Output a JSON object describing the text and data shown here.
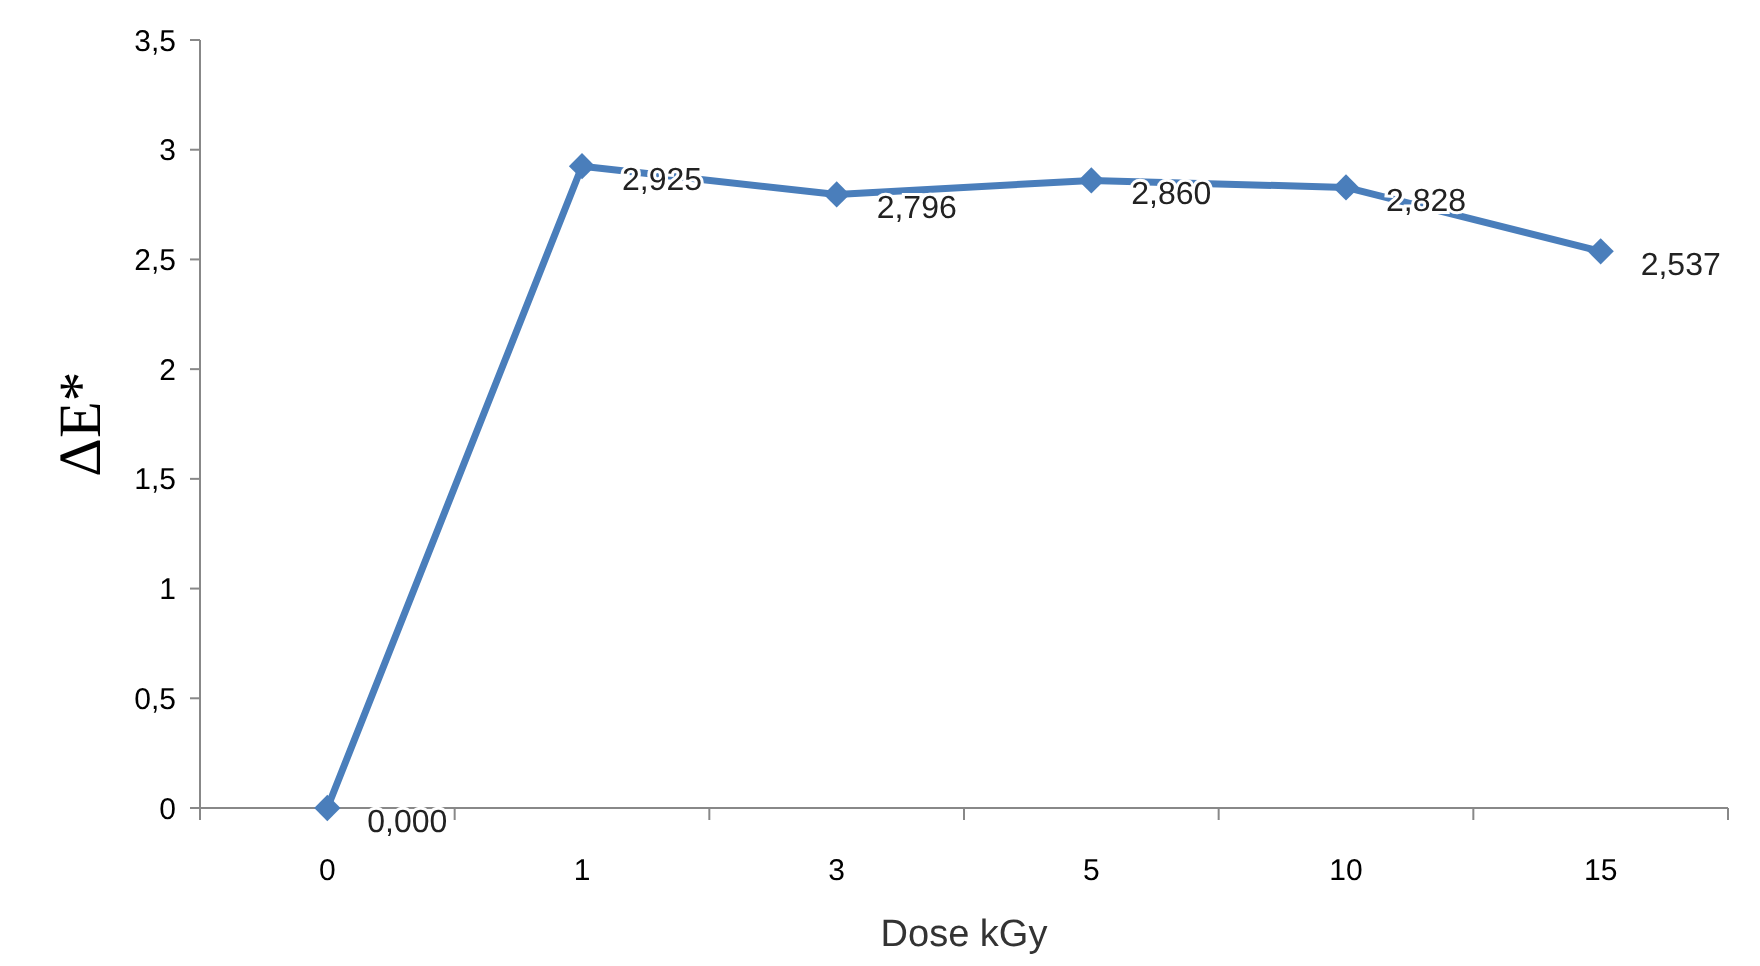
{
  "chart_data": {
    "type": "line",
    "xlabel": "Dose kGy",
    "ylabel": "ΔE*",
    "categories": [
      "0",
      "1",
      "3",
      "5",
      "10",
      "15"
    ],
    "series": [
      {
        "color": "#4a7ebb",
        "values": [
          0,
          2.925,
          2.796,
          2.86,
          2.828,
          2.537
        ],
        "value_labels": [
          "0,000",
          "2,925",
          "2,796",
          "2,860",
          "2,828",
          "2,537"
        ]
      }
    ],
    "ylim": [
      0,
      3.5
    ],
    "yticks": [
      0,
      {
        "value": 0.5,
        "label": "0,5"
      },
      1,
      {
        "value": 1.5,
        "label": "1,5"
      },
      2,
      {
        "value": 2.5,
        "label": "2,5"
      },
      3,
      {
        "value": 3.5,
        "label": "3,5"
      }
    ],
    "grid": false,
    "marker": "diamond",
    "line_style": "solid"
  }
}
